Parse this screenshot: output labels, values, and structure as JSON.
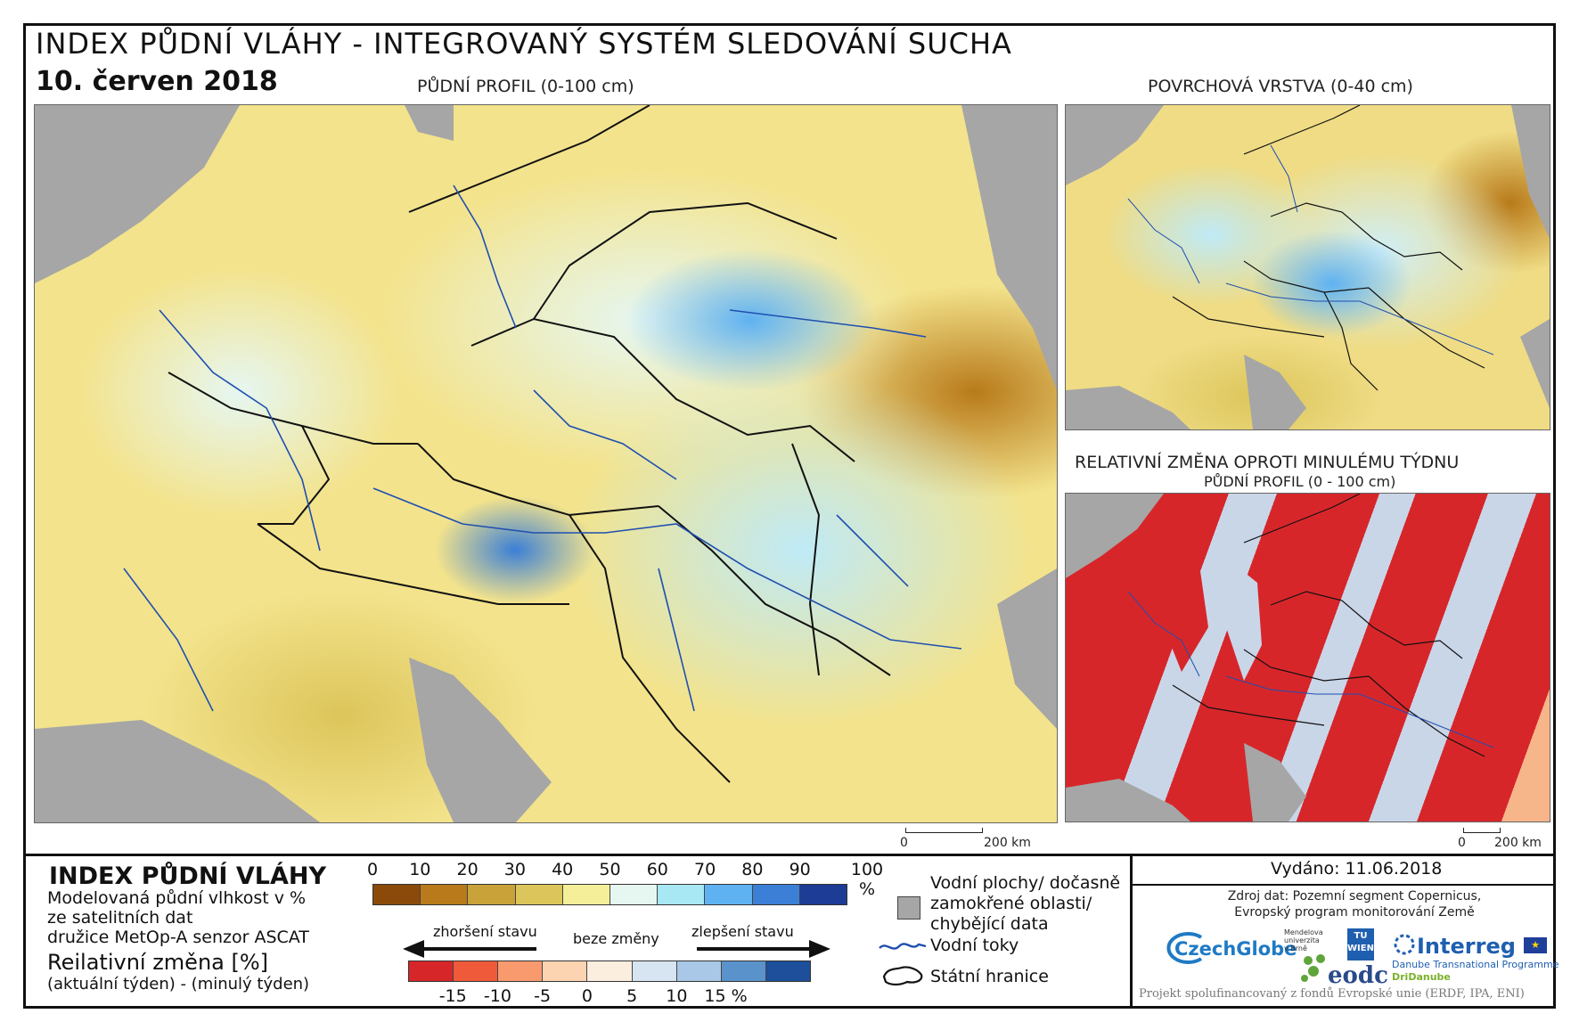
{
  "header": {
    "title": "INDEX PŮDNÍ VLÁHY - INTEGROVANÝ SYSTÉM SLEDOVÁNÍ SUCHA",
    "date": "10. červen 2018"
  },
  "maps": {
    "main_caption": "PŮDNÍ PROFIL (0-100 cm)",
    "surface_caption": "POVRCHOVÁ VRSTVA (0-40 cm)",
    "change_caption": "RELATIVNÍ ZMĚNA OPROTI MINULÉMU TÝDNU",
    "change_subcaption": "PŮDNÍ PROFIL (0 - 100 cm)",
    "scale_main_zero": "0",
    "scale_main_end": "200 km",
    "scale_change_zero": "0",
    "scale_change_end": "200 km"
  },
  "legend": {
    "title": "INDEX PŮDNÍ VLÁHY",
    "desc_line1": "Modelovaná půdní vlhkost v %",
    "desc_line2": "ze satelitních dat",
    "desc_line3": "družice MetOp-A senzor ASCAT",
    "change_title": "Reilativní změna [%]",
    "change_desc": "(aktuální týden) - (minulý týden)",
    "index_ticks": [
      "0",
      "10",
      "20",
      "30",
      "40",
      "50",
      "60",
      "70",
      "80",
      "90",
      "100 %"
    ],
    "index_colors": [
      "#8b4a0a",
      "#b87a1a",
      "#c9a33a",
      "#dcc55a",
      "#f6ef9a",
      "#e6f7f2",
      "#a8e8f4",
      "#5fb2f2",
      "#3b7fd6",
      "#1c3c96"
    ],
    "arrow_worse": "zhoršení stavu",
    "arrow_same": "beze změny",
    "arrow_better": "zlepšení stavu",
    "change_ticks": [
      "-15",
      "-10",
      "-5",
      "0",
      "5",
      "10",
      "15 %"
    ],
    "change_colors": [
      "#d7262a",
      "#ef5a3a",
      "#f99a6e",
      "#fdd4b2",
      "#fbeede",
      "#d7e4f1",
      "#a9c7e6",
      "#5a92cc",
      "#1d4f9a"
    ],
    "water_bodies": "Vodní plochy/ dočasně zamokřené oblasti/ chybějící data",
    "water_bodies_line1": "Vodní plochy/ dočasně",
    "water_bodies_line2": "zamokřené oblasti/",
    "water_bodies_line3": "chybějící data",
    "rivers": "Vodní toky",
    "borders": "Státní hranice",
    "colors": {
      "missing": "#a6a6a6",
      "river": "#1f4fb0",
      "border": "#111111"
    }
  },
  "info": {
    "issued": "Vydáno: 11.06.2018",
    "source_line1": "Zdroj dat: Pozemní segment Copernicus,",
    "source_line2": "Evropský program monitorování Země",
    "logo_czechglobe": "CzechGlobe",
    "logo_mendel": "Mendelova univerzita v Brně",
    "logo_tu": "TU WIEN",
    "logo_eodc": "eodc",
    "logo_interreg": "Interreg",
    "logo_danube": "Danube Transnational Programme",
    "logo_dridanube": "DriDanube",
    "footer": "Projekt spolufinancovaný z fondů Evropské unie (ERDF, IPA, ENI)"
  }
}
